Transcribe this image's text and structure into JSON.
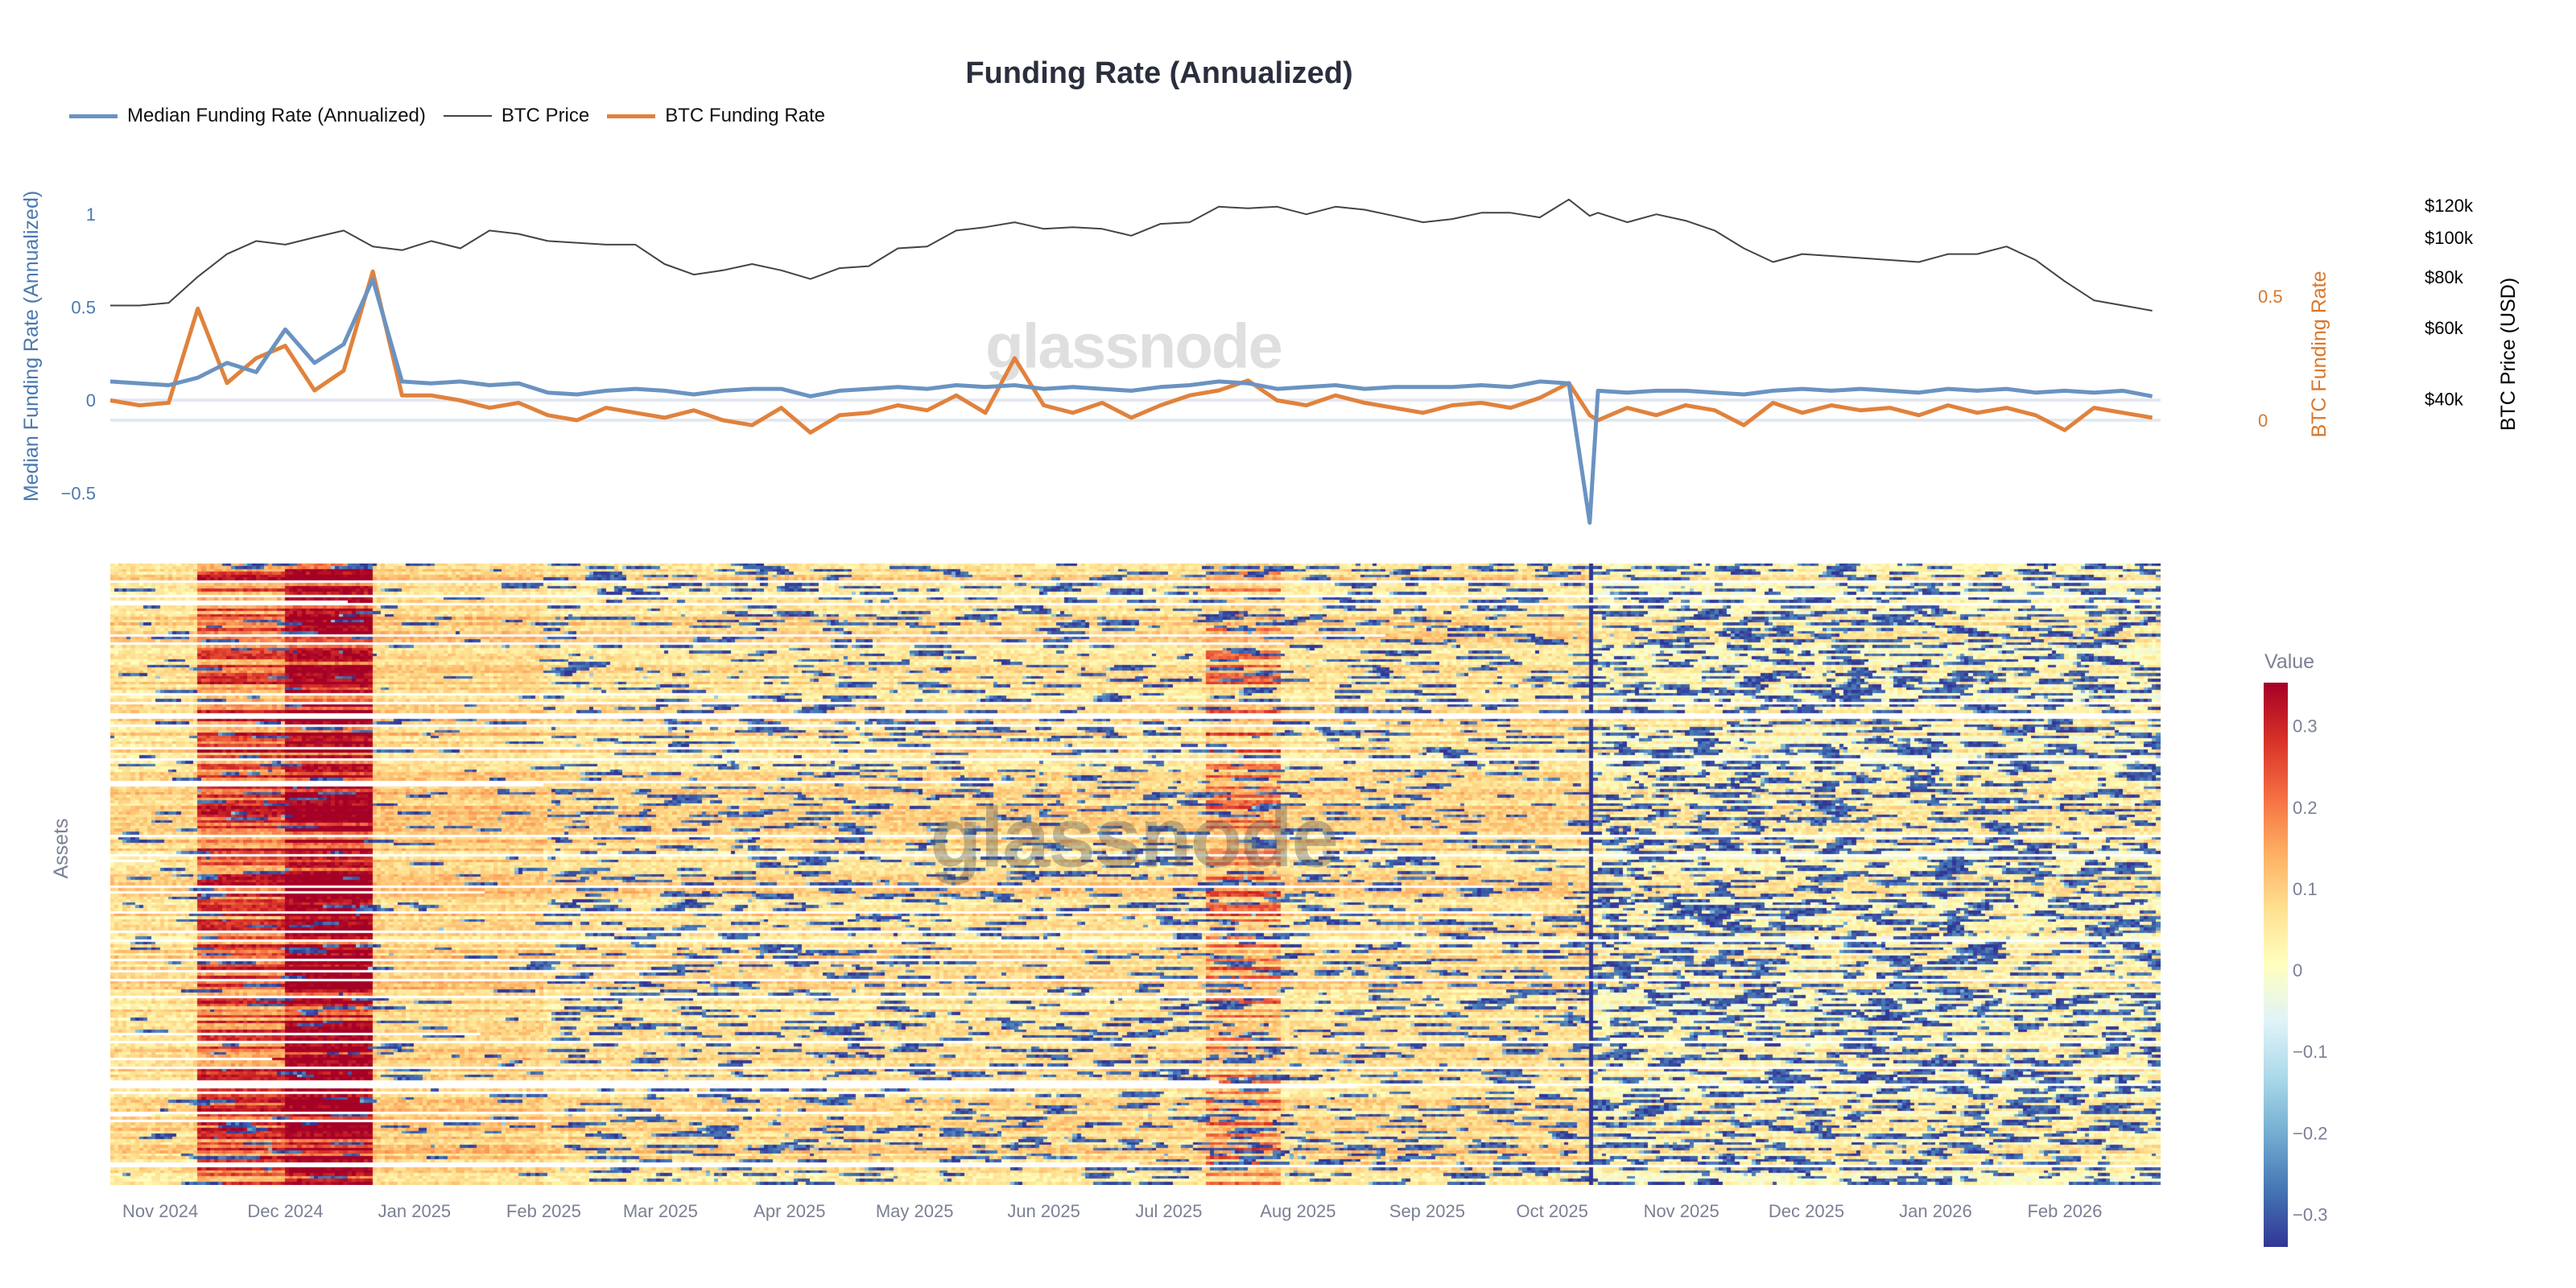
{
  "chart_data": [
    {
      "type": "line",
      "title": "Funding Rate (Annualized)",
      "legend_position": "top-left",
      "x_range": [
        "2024-10-20",
        "2026-02-24"
      ],
      "x_ticks": [
        {
          "date": "2024-11-01",
          "label": "Nov 2024"
        },
        {
          "date": "2024-12-01",
          "label": "Dec 2024"
        },
        {
          "date": "2025-01-01",
          "label": "Jan 2025"
        },
        {
          "date": "2025-02-01",
          "label": "Feb 2025"
        },
        {
          "date": "2025-03-01",
          "label": "Mar 2025"
        },
        {
          "date": "2025-04-01",
          "label": "Apr 2025"
        },
        {
          "date": "2025-05-01",
          "label": "May 2025"
        },
        {
          "date": "2025-06-01",
          "label": "Jun 2025"
        },
        {
          "date": "2025-07-01",
          "label": "Jul 2025"
        },
        {
          "date": "2025-08-01",
          "label": "Aug 2025"
        },
        {
          "date": "2025-09-01",
          "label": "Sep 2025"
        },
        {
          "date": "2025-10-01",
          "label": "Oct 2025"
        },
        {
          "date": "2025-11-01",
          "label": "Nov 2025"
        },
        {
          "date": "2025-12-01",
          "label": "Dec 2025"
        },
        {
          "date": "2026-01-01",
          "label": "Jan 2026"
        },
        {
          "date": "2026-02-01",
          "label": "Feb 2026"
        }
      ],
      "x": [
        "2024-10-20",
        "2024-10-27",
        "2024-11-03",
        "2024-11-10",
        "2024-11-17",
        "2024-11-24",
        "2024-12-01",
        "2024-12-08",
        "2024-12-15",
        "2024-12-22",
        "2024-12-29",
        "2025-01-05",
        "2025-01-12",
        "2025-01-19",
        "2025-01-26",
        "2025-02-02",
        "2025-02-09",
        "2025-02-16",
        "2025-02-23",
        "2025-03-02",
        "2025-03-09",
        "2025-03-16",
        "2025-03-23",
        "2025-03-30",
        "2025-04-06",
        "2025-04-13",
        "2025-04-20",
        "2025-04-27",
        "2025-05-04",
        "2025-05-11",
        "2025-05-18",
        "2025-05-25",
        "2025-06-01",
        "2025-06-08",
        "2025-06-15",
        "2025-06-22",
        "2025-06-29",
        "2025-07-06",
        "2025-07-13",
        "2025-07-20",
        "2025-07-27",
        "2025-08-03",
        "2025-08-10",
        "2025-08-17",
        "2025-08-24",
        "2025-08-31",
        "2025-09-07",
        "2025-09-14",
        "2025-09-21",
        "2025-09-28",
        "2025-10-05",
        "2025-10-10",
        "2025-10-12",
        "2025-10-19",
        "2025-10-26",
        "2025-11-02",
        "2025-11-09",
        "2025-11-16",
        "2025-11-23",
        "2025-11-30",
        "2025-12-07",
        "2025-12-14",
        "2025-12-21",
        "2025-12-28",
        "2026-01-04",
        "2026-01-11",
        "2026-01-18",
        "2026-01-25",
        "2026-02-01",
        "2026-02-08",
        "2026-02-15",
        "2026-02-22"
      ],
      "axes": {
        "left": {
          "label": "Median Funding Rate (Annualized)",
          "range": [
            -0.706,
            1.156
          ],
          "ticks": [
            {
              "v": 1,
              "label": "1"
            },
            {
              "v": 0.5,
              "label": "0.5"
            },
            {
              "v": 0,
              "label": "0"
            },
            {
              "v": -0.5,
              "label": "−0.5"
            }
          ],
          "color": "#4a78b0"
        },
        "right": {
          "label": "BTC Funding Rate",
          "range": [
            -0.448,
            0.948
          ],
          "ticks": [
            {
              "v": 0.5,
              "label": "0.5"
            },
            {
              "v": 0,
              "label": "0"
            }
          ],
          "color": "#d9772c"
        },
        "price": {
          "label": "BTC Price (USD)",
          "scale": "log",
          "range": [
            18900,
            134500
          ],
          "ticks": [
            {
              "v": 120000,
              "label": "$120k"
            },
            {
              "v": 100000,
              "label": "$100k"
            },
            {
              "v": 80000,
              "label": "$80k"
            },
            {
              "v": 60000,
              "label": "$60k"
            },
            {
              "v": 40000,
              "label": "$40k"
            }
          ],
          "color": "#000000"
        }
      },
      "series": [
        {
          "name": "Median Funding Rate (Annualized)",
          "axis": "left",
          "color": "#6a93c1",
          "values": [
            0.1,
            0.09,
            0.08,
            0.12,
            0.2,
            0.15,
            0.38,
            0.2,
            0.3,
            0.65,
            0.1,
            0.09,
            0.1,
            0.08,
            0.09,
            0.04,
            0.03,
            0.05,
            0.06,
            0.05,
            0.03,
            0.05,
            0.06,
            0.06,
            0.02,
            0.05,
            0.06,
            0.07,
            0.06,
            0.08,
            0.07,
            0.08,
            0.06,
            0.07,
            0.06,
            0.05,
            0.07,
            0.08,
            0.1,
            0.09,
            0.06,
            0.07,
            0.08,
            0.06,
            0.07,
            0.07,
            0.07,
            0.08,
            0.07,
            0.1,
            0.09,
            -0.66,
            0.05,
            0.04,
            0.05,
            0.05,
            0.04,
            0.03,
            0.05,
            0.06,
            0.05,
            0.06,
            0.05,
            0.04,
            0.06,
            0.05,
            0.06,
            0.04,
            0.05,
            0.04,
            0.05,
            0.02
          ]
        },
        {
          "name": "BTC Price",
          "axis": "price",
          "color": "#444444",
          "values": [
            68000,
            68000,
            69000,
            80000,
            91000,
            98000,
            96000,
            100000,
            104000,
            95000,
            93000,
            98000,
            94000,
            104000,
            102000,
            98000,
            97000,
            96000,
            96000,
            86000,
            81000,
            83000,
            86000,
            83000,
            79000,
            84000,
            85000,
            94000,
            95000,
            104000,
            106000,
            109000,
            105000,
            106000,
            105000,
            101000,
            108000,
            109000,
            119000,
            118000,
            119000,
            114000,
            119000,
            117000,
            113000,
            109000,
            111000,
            115000,
            115000,
            112000,
            124000,
            113000,
            115000,
            109000,
            114000,
            110000,
            104000,
            94000,
            87000,
            91000,
            90000,
            89000,
            88000,
            87000,
            91000,
            91000,
            95000,
            88000,
            78000,
            70000,
            68000,
            66000
          ]
        },
        {
          "name": "BTC Funding Rate",
          "axis": "right",
          "color": "#e0823d",
          "values": [
            0.08,
            0.06,
            0.07,
            0.45,
            0.15,
            0.25,
            0.3,
            0.12,
            0.2,
            0.6,
            0.1,
            0.1,
            0.08,
            0.05,
            0.07,
            0.02,
            0.0,
            0.05,
            0.03,
            0.01,
            0.04,
            0.0,
            -0.02,
            0.05,
            -0.05,
            0.02,
            0.03,
            0.06,
            0.04,
            0.1,
            0.03,
            0.25,
            0.06,
            0.03,
            0.07,
            0.01,
            0.06,
            0.1,
            0.12,
            0.16,
            0.08,
            0.06,
            0.1,
            0.07,
            0.05,
            0.03,
            0.06,
            0.07,
            0.05,
            0.09,
            0.15,
            0.02,
            0.0,
            0.05,
            0.02,
            0.06,
            0.04,
            -0.02,
            0.07,
            0.03,
            0.06,
            0.04,
            0.05,
            0.02,
            0.06,
            0.03,
            0.05,
            0.02,
            -0.04,
            0.05,
            0.03,
            0.01
          ]
        }
      ],
      "watermark": "glassnode"
    },
    {
      "type": "heatmap",
      "ylabel": "Assets",
      "x_range": [
        "2024-10-20",
        "2026-02-24"
      ],
      "colorbar": {
        "title": "Value",
        "zmin": -0.34,
        "zmax": 0.353,
        "ticks": [
          {
            "v": 0.3,
            "label": "0.3"
          },
          {
            "v": 0.2,
            "label": "0.2"
          },
          {
            "v": 0.1,
            "label": "0.1"
          },
          {
            "v": 0,
            "label": "0"
          },
          {
            "v": -0.1,
            "label": "−0.1"
          },
          {
            "v": -0.2,
            "label": "−0.2"
          },
          {
            "v": -0.3,
            "label": "−0.3"
          }
        ]
      },
      "colorscale": [
        "#313695",
        "#4575b4",
        "#74add1",
        "#abd9e9",
        "#e0f3f8",
        "#ffffbf",
        "#fee090",
        "#fdae61",
        "#f46d43",
        "#d73027",
        "#a50026"
      ],
      "watermark": "glassnode"
    }
  ]
}
